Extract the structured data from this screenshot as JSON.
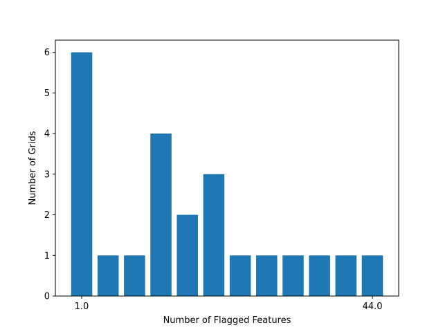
{
  "chart_data": {
    "type": "bar",
    "title": "",
    "xlabel": "Number of Flagged Features",
    "ylabel": "Number of Grids",
    "categories": [
      "1.0",
      "",
      "",
      "",
      "",
      "",
      "",
      "",
      "",
      "",
      "",
      "44.0"
    ],
    "values": [
      6,
      1,
      1,
      4,
      2,
      3,
      1,
      1,
      1,
      1,
      1,
      1
    ],
    "x_tick_labels": [
      "1.0",
      "44.0"
    ],
    "y_ticks": [
      0,
      1,
      2,
      3,
      4,
      5,
      6
    ],
    "ylim": [
      0,
      6.3
    ],
    "grid": false,
    "legend": "none",
    "bar_color": "#1f77b4"
  }
}
